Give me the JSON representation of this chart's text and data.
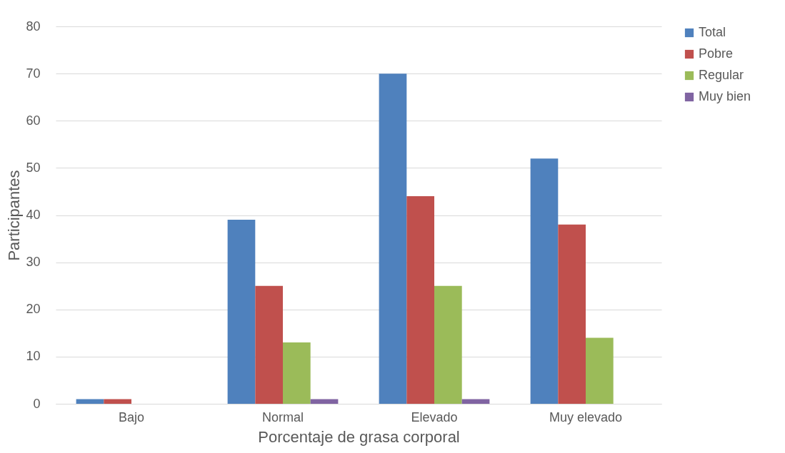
{
  "chart_data": {
    "type": "bar",
    "xlabel": "Porcentaje de grasa corporal",
    "ylabel": "Participantes",
    "categories": [
      "Bajo",
      "Normal",
      "Elevado",
      "Muy elevado"
    ],
    "series": [
      {
        "name": "Total",
        "color": "#4f81bd",
        "values": [
          1,
          39,
          70,
          52
        ]
      },
      {
        "name": "Pobre",
        "color": "#c0504d",
        "values": [
          1,
          25,
          44,
          38
        ]
      },
      {
        "name": "Regular",
        "color": "#9bbb59",
        "values": [
          0,
          13,
          25,
          14
        ]
      },
      {
        "name": "Muy bien",
        "color": "#8064a2",
        "values": [
          0,
          1,
          1,
          0
        ]
      }
    ],
    "ylim": [
      0,
      80
    ],
    "yticks": [
      0,
      10,
      20,
      30,
      40,
      50,
      60,
      70,
      80
    ],
    "grid": "y",
    "legend": "right"
  }
}
